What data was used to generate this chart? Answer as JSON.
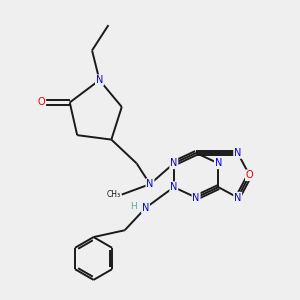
{
  "bg_color": "#efefef",
  "bond_color": "#1a1a1a",
  "atom_colors": {
    "N": "#0000ee",
    "O": "#ee0000",
    "H": "#5aadad"
  },
  "figsize": [
    3.0,
    3.0
  ],
  "dpi": 100,
  "lw": 1.4,
  "fs": 7.0
}
